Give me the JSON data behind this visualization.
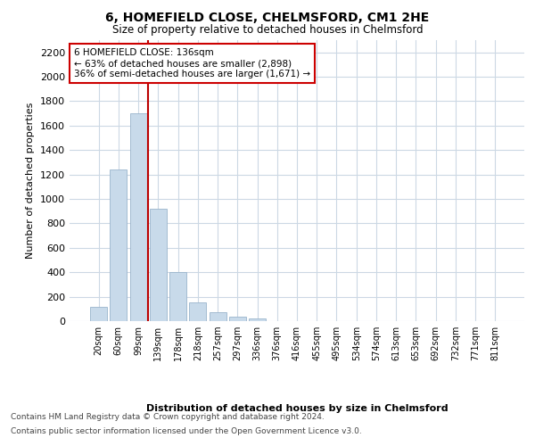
{
  "title": "6, HOMEFIELD CLOSE, CHELMSFORD, CM1 2HE",
  "subtitle": "Size of property relative to detached houses in Chelmsford",
  "xlabel": "Distribution of detached houses by size in Chelmsford",
  "ylabel": "Number of detached properties",
  "bar_labels": [
    "20sqm",
    "60sqm",
    "99sqm",
    "139sqm",
    "178sqm",
    "218sqm",
    "257sqm",
    "297sqm",
    "336sqm",
    "376sqm",
    "416sqm",
    "455sqm",
    "495sqm",
    "534sqm",
    "574sqm",
    "613sqm",
    "653sqm",
    "692sqm",
    "732sqm",
    "771sqm",
    "811sqm"
  ],
  "bar_values": [
    120,
    1240,
    1700,
    920,
    400,
    150,
    70,
    35,
    25,
    0,
    0,
    0,
    0,
    0,
    0,
    0,
    0,
    0,
    0,
    0,
    0
  ],
  "bar_color": "#c8daea",
  "bar_edge_color": "#9ab4cc",
  "vline_color": "#bb0000",
  "annotation_text": "6 HOMEFIELD CLOSE: 136sqm\n← 63% of detached houses are smaller (2,898)\n36% of semi-detached houses are larger (1,671) →",
  "annotation_box_color": "#ffffff",
  "annotation_box_edge": "#cc0000",
  "ylim_max": 2300,
  "yticks": [
    0,
    200,
    400,
    600,
    800,
    1000,
    1200,
    1400,
    1600,
    1800,
    2000,
    2200
  ],
  "footer_line1": "Contains HM Land Registry data © Crown copyright and database right 2024.",
  "footer_line2": "Contains public sector information licensed under the Open Government Licence v3.0.",
  "bg_color": "#ffffff",
  "grid_color": "#ccd8e4"
}
